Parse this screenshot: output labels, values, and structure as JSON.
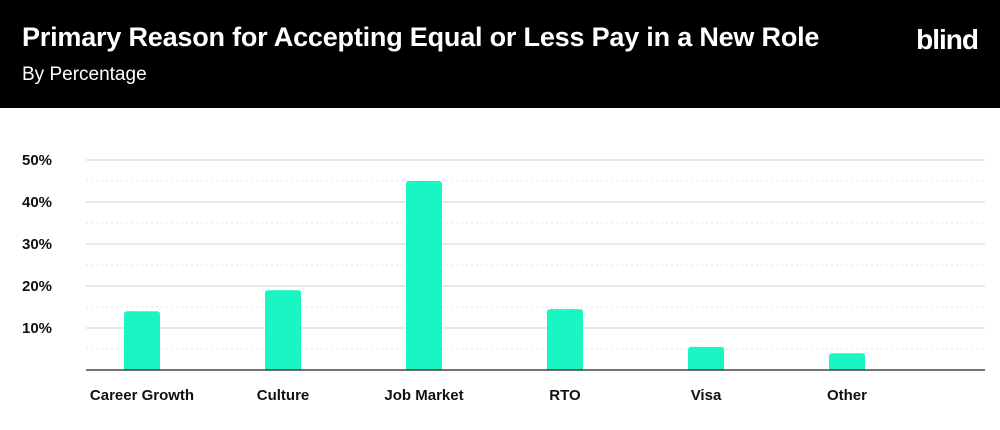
{
  "header": {
    "title": "Primary Reason for Accepting Equal or Less Pay in a New Role",
    "subtitle": "By Percentage",
    "logo_text": "blind"
  },
  "colors": {
    "bar": "#19f5c3",
    "header_bg": "#000000",
    "grid_major": "#d6d6d6",
    "grid_minor": "#e4e4e4",
    "axis": "#222222"
  },
  "chart_data": {
    "type": "bar",
    "categories": [
      "Career Growth",
      "Culture",
      "Job Market",
      "RTO",
      "Visa",
      "Other"
    ],
    "values": [
      14,
      19,
      45,
      14.5,
      5.5,
      4
    ],
    "ylim": [
      0,
      50
    ],
    "yticks": [
      10,
      20,
      30,
      40,
      50
    ],
    "ytick_labels": [
      "10%",
      "20%",
      "30%",
      "40%",
      "50%"
    ],
    "grid": true,
    "xlabel": "",
    "ylabel": ""
  }
}
